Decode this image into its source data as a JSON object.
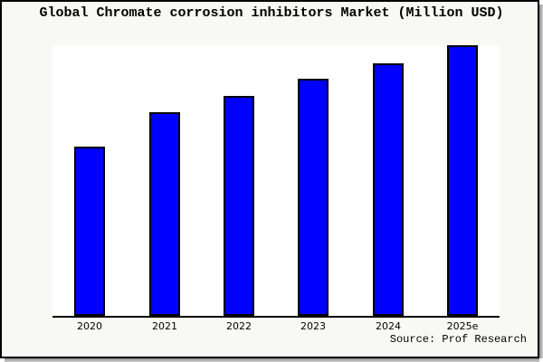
{
  "window": {
    "title": "Global Chromate corrosion inhibitors Market (Million USD)"
  },
  "chart_data": {
    "type": "bar",
    "title": "Global Chromate corrosion inhibitors Market (Million USD)",
    "categories": [
      "2020",
      "2021",
      "2022",
      "2023",
      "2024",
      "2025e"
    ],
    "values": [
      62.7,
      75.1,
      81.4,
      87.7,
      93.4,
      100
    ],
    "units": "relative index, 2025e = 100 (no y-axis scale shown in chart)",
    "xlabel": "",
    "ylabel": "",
    "ylim": [
      0,
      100
    ],
    "grid": false,
    "legend": false,
    "bar_fill_color": "#0000FF",
    "bar_edge_color": "#000000",
    "plot_background": "#FFFFFF",
    "figure_background": "#F8F8F4"
  },
  "footer": {
    "source_label": "Source: Prof Research"
  }
}
